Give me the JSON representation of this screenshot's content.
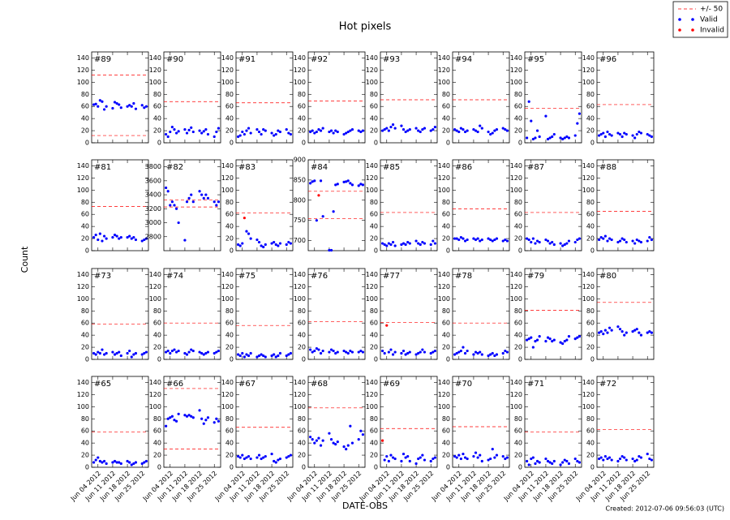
{
  "figure": {
    "title": "Hot pixels",
    "xlabel": "DATE-OBS",
    "ylabel": "Count",
    "footer": "Created: 2012-07-06 09:56:03 (UTC)",
    "legend": [
      {
        "name": "+/- 50",
        "color": "#ff0000",
        "style": "dashed"
      },
      {
        "name": "Valid",
        "color": "#0000ff",
        "style": "dot"
      },
      {
        "name": "Invalid",
        "color": "#ff0000",
        "style": "dot"
      }
    ],
    "x": [
      "2012-06-02",
      "2012-06-03",
      "2012-06-04",
      "2012-06-05",
      "2012-06-06",
      "2012-06-07",
      "2012-06-08",
      "2012-06-11",
      "2012-06-12",
      "2012-06-13",
      "2012-06-14",
      "2012-06-15",
      "2012-06-18",
      "2012-06-19",
      "2012-06-20",
      "2012-06-21",
      "2012-06-22",
      "2012-06-25",
      "2012-06-26",
      "2012-06-27"
    ],
    "xlim": [
      "2012-06-01",
      "2012-06-28"
    ],
    "xticks": [
      {
        "value": "2012-06-04",
        "label": "Jun 04 2012"
      },
      {
        "value": "2012-06-11",
        "label": "Jun 11 2012"
      },
      {
        "value": "2012-06-18",
        "label": "Jun 18 2012"
      },
      {
        "value": "2012-06-25",
        "label": "Jun 25 2012"
      }
    ]
  },
  "chart_data": [
    {
      "type": "scatter",
      "label": "#89",
      "ylim": [
        0,
        150
      ],
      "yticks": [
        0,
        20,
        40,
        60,
        80,
        100,
        120,
        140
      ],
      "limits": [
        12,
        112
      ],
      "valid": [
        63,
        64,
        60,
        70,
        68,
        55,
        60,
        57,
        67,
        65,
        63,
        58,
        60,
        62,
        60,
        65,
        56,
        62,
        58,
        60
      ]
    },
    {
      "type": "scatter",
      "label": "#90",
      "ylim": [
        0,
        150
      ],
      "yticks": [
        0,
        20,
        40,
        60,
        80,
        100,
        120,
        140
      ],
      "limits": [
        68
      ],
      "valid": [
        14,
        10,
        18,
        26,
        22,
        16,
        19,
        22,
        16,
        21,
        25,
        18,
        20,
        16,
        19,
        22,
        14,
        10,
        18,
        24
      ]
    },
    {
      "type": "scatter",
      "label": "#91",
      "ylim": [
        0,
        150
      ],
      "yticks": [
        0,
        20,
        40,
        60,
        80,
        100,
        120,
        140
      ],
      "limits": [
        66
      ],
      "valid": [
        10,
        12,
        18,
        14,
        20,
        24,
        16,
        22,
        18,
        14,
        22,
        20,
        16,
        12,
        14,
        20,
        18,
        22,
        16,
        14
      ]
    },
    {
      "type": "scatter",
      "label": "#92",
      "ylim": [
        0,
        150
      ],
      "yticks": [
        0,
        20,
        40,
        60,
        80,
        100,
        120,
        140
      ],
      "limits": [
        69
      ],
      "valid": [
        18,
        20,
        16,
        18,
        22,
        20,
        24,
        18,
        20,
        16,
        20,
        18,
        14,
        16,
        18,
        20,
        22,
        20,
        18,
        20
      ]
    },
    {
      "type": "scatter",
      "label": "#93",
      "ylim": [
        0,
        150
      ],
      "yticks": [
        0,
        20,
        40,
        60,
        80,
        100,
        120,
        140
      ],
      "limits": [
        71
      ],
      "valid": [
        20,
        22,
        24,
        20,
        26,
        30,
        24,
        28,
        22,
        18,
        20,
        22,
        24,
        20,
        18,
        22,
        24,
        20,
        22,
        26
      ]
    },
    {
      "type": "scatter",
      "label": "#94",
      "ylim": [
        0,
        150
      ],
      "yticks": [
        0,
        20,
        40,
        60,
        80,
        100,
        120,
        140
      ],
      "limits": [
        71
      ],
      "valid": [
        22,
        20,
        18,
        24,
        22,
        18,
        20,
        22,
        20,
        18,
        28,
        24,
        18,
        14,
        16,
        20,
        22,
        24,
        22,
        20
      ]
    },
    {
      "type": "scatter",
      "label": "#95",
      "ylim": [
        0,
        150
      ],
      "yticks": [
        0,
        20,
        40,
        60,
        80,
        100,
        120,
        140
      ],
      "limits": [
        57
      ],
      "valid": [
        8,
        68,
        36,
        6,
        8,
        20,
        10,
        44,
        6,
        8,
        10,
        14,
        8,
        6,
        8,
        10,
        8,
        12,
        32,
        48
      ]
    },
    {
      "type": "scatter",
      "label": "#96",
      "ylim": [
        0,
        150
      ],
      "yticks": [
        0,
        20,
        40,
        60,
        80,
        100,
        120,
        140
      ],
      "limits": [
        63
      ],
      "valid": [
        12,
        14,
        16,
        10,
        18,
        14,
        12,
        16,
        14,
        10,
        16,
        14,
        12,
        8,
        14,
        18,
        16,
        14,
        12,
        10
      ]
    },
    {
      "type": "scatter",
      "label": "#81",
      "ylim": [
        0,
        150
      ],
      "yticks": [
        0,
        20,
        40,
        60,
        80,
        100,
        120,
        140
      ],
      "limits": [
        73
      ],
      "valid": [
        22,
        26,
        18,
        28,
        16,
        24,
        20,
        22,
        26,
        24,
        20,
        22,
        22,
        24,
        20,
        22,
        18,
        16,
        18,
        20
      ]
    },
    {
      "type": "scatter",
      "label": "#82",
      "ylim": [
        2600,
        3900
      ],
      "yticks": [
        2800,
        3000,
        3200,
        3400,
        3600,
        3800
      ],
      "limits": [
        3225,
        3325
      ],
      "valid": [
        3500,
        3450,
        3250,
        3300,
        3250,
        3200,
        3000,
        2750,
        3300,
        3350,
        3400,
        3300,
        3450,
        3400,
        3350,
        3400,
        3350,
        3300,
        3250,
        3300
      ]
    },
    {
      "type": "scatter",
      "label": "#83",
      "ylim": [
        0,
        150
      ],
      "yticks": [
        0,
        20,
        40,
        60,
        80,
        100,
        120,
        140
      ],
      "limits": [
        62
      ],
      "valid": [
        10,
        8,
        12,
        null,
        32,
        28,
        20,
        18,
        14,
        8,
        6,
        10,
        12,
        14,
        10,
        8,
        12,
        10,
        14,
        12
      ],
      "invalid": [
        null,
        null,
        null,
        54,
        null,
        null,
        null,
        null,
        null,
        null,
        null,
        null,
        null,
        null,
        null,
        null,
        null,
        null,
        null,
        null
      ]
    },
    {
      "type": "scatter",
      "label": "#84",
      "ylim": [
        675,
        900
      ],
      "yticks": [
        700,
        750,
        800,
        850,
        900
      ],
      "limits": [
        754,
        822
      ],
      "valid": [
        842,
        846,
        848,
        750,
        null,
        848,
        760,
        676,
        676,
        772,
        838,
        840,
        845,
        846,
        848,
        842,
        838,
        836,
        840,
        838
      ],
      "invalid": [
        null,
        null,
        null,
        null,
        812,
        null,
        null,
        null,
        null,
        null,
        null,
        null,
        null,
        null,
        null,
        null,
        null,
        null,
        null,
        null
      ]
    },
    {
      "type": "scatter",
      "label": "#85",
      "ylim": [
        0,
        150
      ],
      "yticks": [
        0,
        20,
        40,
        60,
        80,
        100,
        120,
        140
      ],
      "limits": [
        63
      ],
      "valid": [
        12,
        10,
        8,
        12,
        10,
        14,
        8,
        10,
        12,
        10,
        14,
        12,
        16,
        12,
        10,
        14,
        12,
        10,
        16,
        12
      ]
    },
    {
      "type": "scatter",
      "label": "#86",
      "ylim": [
        0,
        150
      ],
      "yticks": [
        0,
        20,
        40,
        60,
        80,
        100,
        120,
        140
      ],
      "limits": [
        69
      ],
      "valid": [
        20,
        20,
        18,
        22,
        20,
        16,
        18,
        20,
        18,
        20,
        16,
        18,
        20,
        18,
        16,
        18,
        20,
        16,
        18,
        16
      ]
    },
    {
      "type": "scatter",
      "label": "#87",
      "ylim": [
        0,
        150
      ],
      "yticks": [
        0,
        20,
        40,
        60,
        80,
        100,
        120,
        140
      ],
      "limits": [
        63
      ],
      "valid": [
        20,
        18,
        14,
        20,
        12,
        16,
        14,
        18,
        16,
        12,
        14,
        10,
        12,
        8,
        10,
        12,
        16,
        14,
        18,
        20
      ]
    },
    {
      "type": "scatter",
      "label": "#88",
      "ylim": [
        0,
        150
      ],
      "yticks": [
        0,
        20,
        40,
        60,
        80,
        100,
        120,
        140
      ],
      "limits": [
        65
      ],
      "valid": [
        18,
        22,
        20,
        24,
        16,
        20,
        18,
        14,
        16,
        20,
        18,
        14,
        16,
        12,
        18,
        16,
        14,
        16,
        22,
        18
      ]
    },
    {
      "type": "scatter",
      "label": "#73",
      "ylim": [
        0,
        150
      ],
      "yticks": [
        0,
        20,
        40,
        60,
        80,
        100,
        120,
        140
      ],
      "limits": [
        58
      ],
      "valid": [
        10,
        8,
        12,
        10,
        16,
        8,
        10,
        12,
        8,
        10,
        12,
        6,
        10,
        14,
        4,
        8,
        10,
        8,
        10,
        12
      ]
    },
    {
      "type": "scatter",
      "label": "#74",
      "ylim": [
        0,
        150
      ],
      "yticks": [
        0,
        20,
        40,
        60,
        80,
        100,
        120,
        140
      ],
      "limits": [
        60
      ],
      "valid": [
        12,
        14,
        10,
        14,
        16,
        12,
        14,
        10,
        8,
        12,
        16,
        14,
        12,
        10,
        8,
        10,
        12,
        10,
        12,
        14
      ]
    },
    {
      "type": "scatter",
      "label": "#75",
      "ylim": [
        0,
        150
      ],
      "yticks": [
        0,
        20,
        40,
        60,
        80,
        100,
        120,
        140
      ],
      "limits": [
        56
      ],
      "valid": [
        8,
        6,
        10,
        4,
        8,
        6,
        10,
        4,
        6,
        8,
        6,
        4,
        6,
        8,
        4,
        6,
        10,
        6,
        8,
        10
      ]
    },
    {
      "type": "scatter",
      "label": "#76",
      "ylim": [
        0,
        150
      ],
      "yticks": [
        0,
        20,
        40,
        60,
        80,
        100,
        120,
        140
      ],
      "limits": [
        62
      ],
      "valid": [
        16,
        12,
        14,
        18,
        16,
        10,
        14,
        12,
        16,
        14,
        10,
        12,
        14,
        12,
        10,
        14,
        12,
        12,
        14,
        12
      ]
    },
    {
      "type": "scatter",
      "label": "#77",
      "ylim": [
        0,
        150
      ],
      "yticks": [
        0,
        20,
        40,
        60,
        80,
        100,
        120,
        140
      ],
      "limits": [
        61
      ],
      "valid": [
        14,
        10,
        null,
        12,
        16,
        8,
        12,
        10,
        14,
        8,
        10,
        12,
        8,
        10,
        12,
        16,
        12,
        10,
        12,
        14
      ],
      "invalid": [
        null,
        null,
        56,
        null,
        null,
        null,
        null,
        null,
        null,
        null,
        null,
        null,
        null,
        null,
        null,
        null,
        null,
        null,
        null,
        null
      ]
    },
    {
      "type": "scatter",
      "label": "#78",
      "ylim": [
        0,
        150
      ],
      "yticks": [
        0,
        20,
        40,
        60,
        80,
        100,
        120,
        140
      ],
      "limits": [
        60
      ],
      "valid": [
        8,
        10,
        12,
        14,
        20,
        10,
        14,
        8,
        12,
        10,
        12,
        8,
        6,
        8,
        10,
        6,
        8,
        10,
        14,
        12
      ]
    },
    {
      "type": "scatter",
      "label": "#79",
      "ylim": [
        0,
        150
      ],
      "yticks": [
        0,
        20,
        40,
        60,
        80,
        100,
        120,
        140
      ],
      "limits": [
        81
      ],
      "valid": [
        32,
        34,
        36,
        20,
        30,
        32,
        38,
        30,
        36,
        34,
        30,
        32,
        28,
        26,
        30,
        32,
        38,
        34,
        36,
        38
      ]
    },
    {
      "type": "scatter",
      "label": "#80",
      "ylim": [
        0,
        150
      ],
      "yticks": [
        0,
        20,
        40,
        60,
        80,
        100,
        120,
        140
      ],
      "limits": [
        94
      ],
      "valid": [
        44,
        46,
        42,
        48,
        44,
        52,
        48,
        54,
        50,
        46,
        40,
        44,
        46,
        48,
        50,
        44,
        40,
        44,
        46,
        44
      ]
    },
    {
      "type": "scatter",
      "label": "#65",
      "ylim": [
        0,
        150
      ],
      "yticks": [
        0,
        20,
        40,
        60,
        80,
        100,
        120,
        140
      ],
      "limits": [
        58
      ],
      "valid": [
        8,
        12,
        16,
        10,
        8,
        10,
        6,
        8,
        10,
        8,
        8,
        6,
        10,
        8,
        4,
        6,
        8,
        6,
        8,
        10
      ]
    },
    {
      "type": "scatter",
      "label": "#66",
      "ylim": [
        0,
        150
      ],
      "yticks": [
        0,
        20,
        40,
        60,
        80,
        100,
        120,
        140
      ],
      "limits": [
        30,
        130
      ],
      "valid": [
        68,
        80,
        82,
        84,
        78,
        76,
        88,
        86,
        84,
        86,
        84,
        82,
        94,
        80,
        72,
        78,
        82,
        74,
        80,
        76
      ]
    },
    {
      "type": "scatter",
      "label": "#67",
      "ylim": [
        0,
        150
      ],
      "yticks": [
        0,
        20,
        40,
        60,
        80,
        100,
        120,
        140
      ],
      "limits": [
        66
      ],
      "valid": [
        18,
        16,
        20,
        14,
        16,
        18,
        14,
        16,
        20,
        14,
        16,
        18,
        22,
        10,
        8,
        12,
        14,
        16,
        18,
        20
      ]
    },
    {
      "type": "scatter",
      "label": "#68",
      "ylim": [
        0,
        150
      ],
      "yticks": [
        0,
        20,
        40,
        60,
        80,
        100,
        120,
        140
      ],
      "limits": [
        98
      ],
      "valid": [
        50,
        46,
        40,
        44,
        48,
        36,
        44,
        56,
        46,
        40,
        38,
        42,
        34,
        30,
        36,
        68,
        40,
        46,
        60,
        54
      ]
    },
    {
      "type": "scatter",
      "label": "#69",
      "ylim": [
        0,
        150
      ],
      "yticks": [
        0,
        20,
        40,
        60,
        80,
        100,
        120,
        140
      ],
      "limits": [
        64
      ],
      "valid": [
        null,
        12,
        18,
        10,
        20,
        16,
        14,
        10,
        22,
        16,
        18,
        10,
        6,
        14,
        16,
        20,
        12,
        10,
        14,
        16
      ],
      "invalid": [
        44,
        null,
        null,
        null,
        null,
        null,
        null,
        null,
        null,
        null,
        null,
        null,
        null,
        null,
        null,
        null,
        null,
        null,
        null,
        null
      ]
    },
    {
      "type": "scatter",
      "label": "#70",
      "ylim": [
        0,
        150
      ],
      "yticks": [
        0,
        20,
        40,
        60,
        80,
        100,
        120,
        140
      ],
      "limits": [
        67
      ],
      "valid": [
        18,
        16,
        20,
        14,
        22,
        16,
        14,
        18,
        24,
        16,
        20,
        10,
        12,
        14,
        30,
        16,
        20,
        18,
        14,
        16
      ]
    },
    {
      "type": "scatter",
      "label": "#71",
      "ylim": [
        0,
        150
      ],
      "yticks": [
        0,
        20,
        40,
        60,
        80,
        100,
        120,
        140
      ],
      "limits": [
        58
      ],
      "valid": [
        10,
        4,
        14,
        16,
        6,
        10,
        8,
        14,
        10,
        8,
        6,
        10,
        4,
        8,
        12,
        10,
        6,
        14,
        10,
        8
      ]
    },
    {
      "type": "scatter",
      "label": "#72",
      "ylim": [
        0,
        150
      ],
      "yticks": [
        0,
        20,
        40,
        60,
        80,
        100,
        120,
        140
      ],
      "limits": [
        62
      ],
      "valid": [
        14,
        16,
        12,
        18,
        14,
        16,
        12,
        10,
        14,
        18,
        16,
        12,
        14,
        10,
        12,
        18,
        16,
        22,
        14,
        12
      ]
    }
  ]
}
